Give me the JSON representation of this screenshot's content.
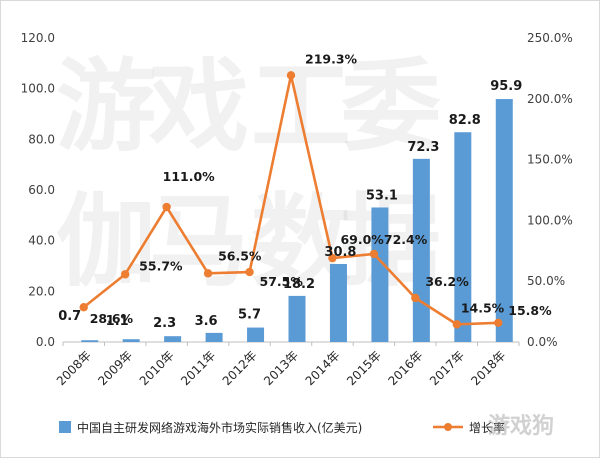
{
  "chart_data": {
    "type": "bar",
    "categories": [
      "2008年",
      "2009年",
      "2010年",
      "2011年",
      "2012年",
      "2013年",
      "2014年",
      "2015年",
      "2016年",
      "2017年",
      "2018年"
    ],
    "series": [
      {
        "name": "中国自主研发网络游戏海外市场实际销售收入(亿美元)",
        "type": "bar",
        "axis": "left",
        "values": [
          0.7,
          1.1,
          2.3,
          3.6,
          5.7,
          18.2,
          30.8,
          53.1,
          72.3,
          82.8,
          95.9
        ],
        "labels": [
          "0.7",
          "1.1",
          "2.3",
          "3.6",
          "5.7",
          "18.2",
          "30.8",
          "53.1",
          "72.3",
          "82.8",
          "95.9"
        ],
        "color": "#5b9bd5"
      },
      {
        "name": "增长率",
        "type": "line",
        "axis": "right",
        "values": [
          28.6,
          55.7,
          111.0,
          56.5,
          57.5,
          219.3,
          69.0,
          72.4,
          36.2,
          14.5,
          15.8
        ],
        "labels": [
          "28.6%",
          "55.7%",
          "111.0%",
          "56.5%",
          "57.5%",
          "219.3%",
          "69.0%",
          "72.4%",
          "36.2%",
          "14.5%",
          "15.8%"
        ],
        "color": "#ed7d31"
      }
    ],
    "y_left": {
      "ylim": [
        0,
        120
      ],
      "ticks": [
        "0.0",
        "20.0",
        "40.0",
        "60.0",
        "80.0",
        "100.0",
        "120.0"
      ]
    },
    "y_right": {
      "ylim": [
        0,
        250
      ],
      "ticks": [
        "0.0%",
        "50.0%",
        "100.0%",
        "150.0%",
        "200.0%",
        "250.0%"
      ]
    },
    "grid": false,
    "legend": "bottom",
    "watermark": [
      "游",
      "戏",
      "工",
      "委",
      "伽",
      "马",
      "数",
      "据"
    ],
    "corner_mark": "游戏狗"
  }
}
